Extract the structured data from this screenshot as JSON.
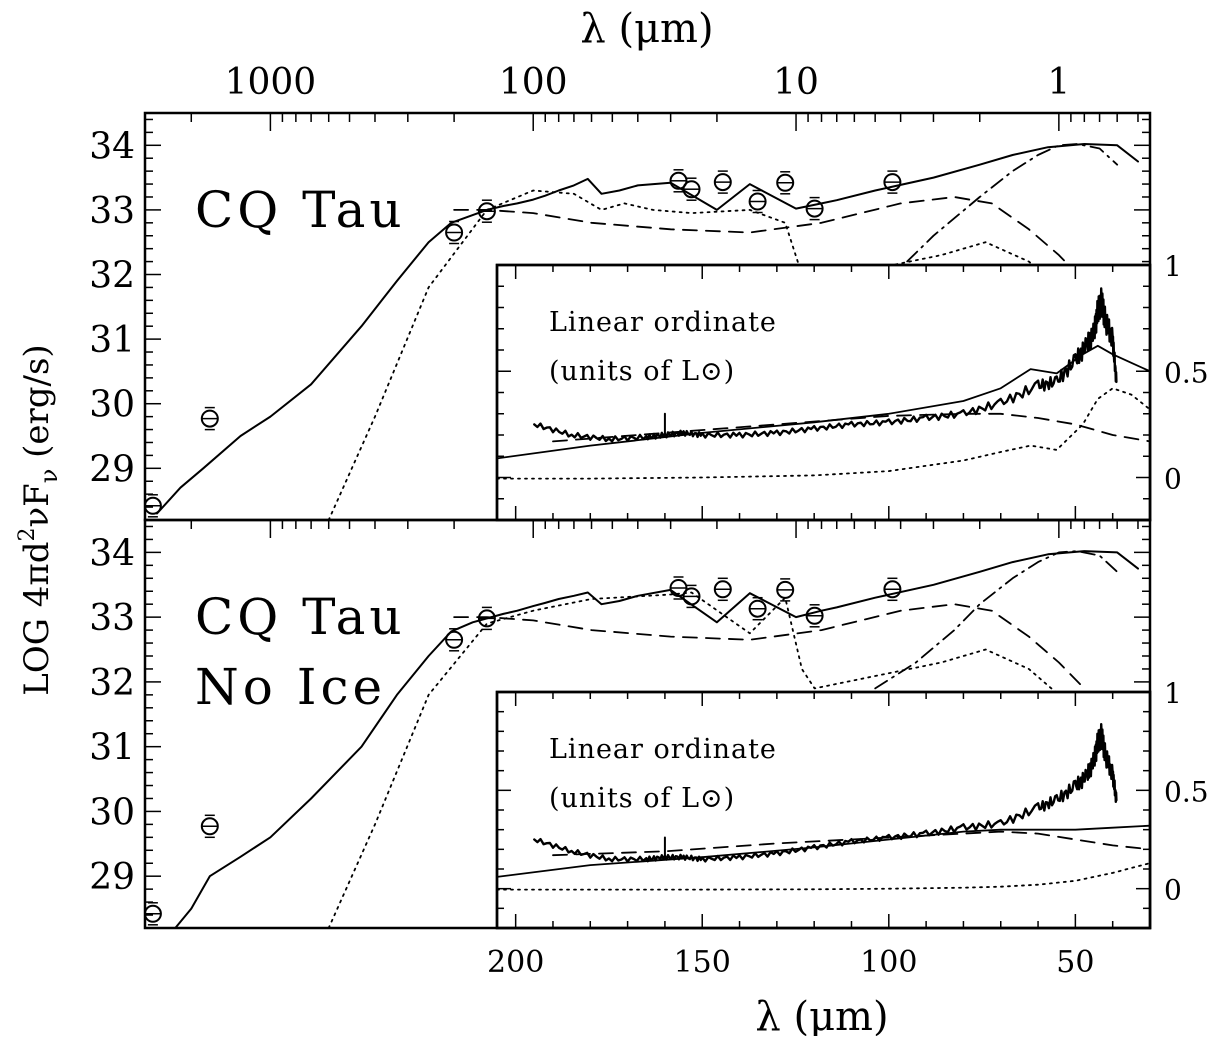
{
  "chart_data": [
    {
      "type": "line",
      "panel": "top",
      "title": "",
      "annotation": [
        "CQ Tau"
      ],
      "xlabel_top": "λ (μm)",
      "xlabel_top_ticks": [
        "1000",
        "100",
        "10",
        "1"
      ],
      "ylabel": "LOG 4πd²νFν (erg/s)",
      "yticks": [
        "34",
        "33",
        "32",
        "31",
        "30",
        "29"
      ],
      "ylim": [
        28.2,
        34.5
      ],
      "log_xlim_um": [
        3000,
        0.45
      ],
      "series": [
        {
          "style": "solid",
          "x": [
            2700,
            2200,
            1800,
            1300,
            1000,
            700,
            450,
            330,
            250,
            205,
            170,
            150,
            130,
            115,
            100,
            90,
            80,
            70,
            62,
            55,
            47,
            40,
            30,
            20,
            15,
            10,
            8,
            7,
            5,
            3,
            2,
            1.5,
            1.1,
            0.8,
            0.6,
            0.5
          ],
          "y": [
            28.3,
            28.7,
            29.0,
            29.5,
            29.8,
            30.3,
            31.2,
            31.9,
            32.5,
            32.8,
            32.92,
            33.0,
            33.06,
            33.1,
            33.16,
            33.22,
            33.3,
            33.38,
            33.48,
            33.25,
            33.3,
            33.38,
            33.42,
            33.0,
            33.4,
            33.02,
            33.1,
            33.15,
            33.3,
            33.5,
            33.7,
            33.85,
            33.97,
            34.02,
            34.0,
            33.75
          ]
        },
        {
          "style": "dashed",
          "x": [
            200,
            150,
            100,
            60,
            30,
            15,
            8,
            4,
            2.5,
            1.8,
            1.3,
            1.0,
            0.8
          ],
          "y": [
            33.0,
            33.0,
            32.95,
            32.8,
            32.7,
            32.65,
            32.8,
            33.1,
            33.2,
            33.1,
            32.7,
            32.3,
            31.9
          ]
        },
        {
          "style": "dotted",
          "x": [
            600,
            400,
            250,
            150,
            100,
            70,
            55,
            45,
            35,
            25,
            15,
            11,
            9.5,
            8.5,
            2.8,
            1.9,
            1.3,
            1.0
          ],
          "y": [
            28.2,
            29.8,
            31.8,
            33.0,
            33.3,
            33.25,
            33.0,
            33.1,
            33.0,
            32.95,
            33.0,
            32.8,
            32.0,
            31.9,
            32.3,
            32.5,
            32.2,
            31.8
          ]
        },
        {
          "style": "dashdot",
          "x": [
            4.5,
            3,
            2,
            1.5,
            1.2,
            1.0,
            0.85,
            0.7,
            0.6
          ],
          "y": [
            31.9,
            32.6,
            33.2,
            33.6,
            33.85,
            34.0,
            34.02,
            33.95,
            33.7
          ]
        }
      ],
      "points": {
        "x": [
          2800,
          1700,
          200,
          150,
          28,
          25,
          19,
          14,
          11,
          8.5,
          4.3
        ],
        "y": [
          28.42,
          29.77,
          32.65,
          32.98,
          33.45,
          33.32,
          33.43,
          33.13,
          33.42,
          33.02,
          33.43
        ]
      },
      "inset": {
        "annotation": [
          "Linear ordinate",
          "(units of L⊙)"
        ],
        "xticks": [
          "200",
          "150",
          "100",
          "50"
        ],
        "xlabel": "λ (μm)",
        "yticks": [
          "1",
          "0.5",
          "0"
        ],
        "ylim": [
          -0.2,
          1.0
        ],
        "xlim": [
          205,
          30
        ],
        "series": [
          {
            "style": "solid",
            "x": [
              205,
              180,
              150,
              120,
              100,
              80,
              70,
              62,
              55,
              48,
              44,
              40,
              35,
              30
            ],
            "y": [
              0.09,
              0.15,
              0.21,
              0.26,
              0.3,
              0.36,
              0.42,
              0.51,
              0.49,
              0.58,
              0.62,
              0.58,
              0.54,
              0.5
            ]
          },
          {
            "style": "dashed",
            "x": [
              190,
              160,
              130,
              100,
              80,
              70,
              60,
              50,
              40,
              30
            ],
            "y": [
              0.17,
              0.21,
              0.25,
              0.29,
              0.3,
              0.3,
              0.28,
              0.25,
              0.2,
              0.17
            ]
          },
          {
            "style": "dotted",
            "x": [
              205,
              180,
              150,
              120,
              100,
              80,
              70,
              62,
              55,
              48,
              44,
              40,
              35,
              30
            ],
            "y": [
              -0.005,
              -0.005,
              0.0,
              0.01,
              0.03,
              0.08,
              0.12,
              0.15,
              0.13,
              0.25,
              0.37,
              0.42,
              0.39,
              0.32
            ]
          },
          {
            "style": "noisy",
            "x": [
              195,
              185,
              175,
              165,
              160,
              155,
              150,
              140,
              130,
              120,
              110,
              100,
              90,
              80,
              70,
              60,
              55,
              50,
              47,
              45,
              44,
              43,
              42,
              40,
              39
            ],
            "y": [
              0.25,
              0.2,
              0.18,
              0.19,
              0.2,
              0.21,
              0.2,
              0.2,
              0.21,
              0.23,
              0.25,
              0.26,
              0.28,
              0.3,
              0.35,
              0.43,
              0.45,
              0.55,
              0.62,
              0.68,
              0.78,
              0.83,
              0.74,
              0.65,
              0.45
            ]
          }
        ]
      }
    },
    {
      "type": "line",
      "panel": "bottom",
      "title": "",
      "annotation": [
        "CQ Tau",
        "No Ice"
      ],
      "xlabel": "λ (μm)",
      "ylabel": "LOG 4πd²νFν (erg/s)",
      "yticks": [
        "34",
        "33",
        "32",
        "31",
        "30",
        "29"
      ],
      "ylim": [
        28.2,
        34.5
      ],
      "log_xlim_um": [
        3000,
        0.45
      ],
      "series": [
        {
          "style": "solid",
          "x": [
            2300,
            2000,
            1700,
            1300,
            1000,
            700,
            450,
            330,
            250,
            205,
            170,
            150,
            130,
            115,
            100,
            90,
            80,
            70,
            62,
            55,
            47,
            40,
            30,
            20,
            15,
            10,
            8,
            7,
            5,
            3,
            2,
            1.5,
            1.1,
            0.8,
            0.6,
            0.5
          ],
          "y": [
            28.2,
            28.5,
            29.0,
            29.3,
            29.6,
            30.2,
            31.0,
            31.8,
            32.4,
            32.78,
            32.92,
            32.98,
            33.05,
            33.1,
            33.17,
            33.22,
            33.28,
            33.33,
            33.38,
            33.2,
            33.25,
            33.33,
            33.42,
            32.92,
            33.37,
            33.0,
            33.1,
            33.15,
            33.3,
            33.5,
            33.7,
            33.85,
            33.97,
            34.02,
            34.0,
            33.75
          ]
        },
        {
          "style": "dashed",
          "x": [
            200,
            150,
            100,
            60,
            30,
            15,
            8,
            4,
            2.5,
            1.8,
            1.3,
            1.0,
            0.8
          ],
          "y": [
            33.0,
            33.0,
            32.95,
            32.8,
            32.7,
            32.65,
            32.8,
            33.1,
            33.2,
            33.1,
            32.7,
            32.3,
            31.9
          ]
        },
        {
          "style": "dotted",
          "x": [
            600,
            400,
            250,
            150,
            100,
            60,
            40,
            30,
            25,
            15,
            11,
            9.5,
            8.5,
            2.8,
            1.9,
            1.3,
            1.0
          ],
          "y": [
            28.2,
            29.8,
            31.8,
            32.9,
            33.1,
            33.28,
            33.32,
            33.35,
            33.38,
            32.75,
            33.3,
            32.2,
            31.9,
            32.3,
            32.5,
            32.2,
            31.8
          ]
        },
        {
          "style": "dashdot",
          "x": [
            5,
            3.5,
            2.5,
            2,
            1.5,
            1.2,
            1.0,
            0.85,
            0.7,
            0.6
          ],
          "y": [
            31.9,
            32.3,
            32.8,
            33.2,
            33.6,
            33.85,
            34.0,
            34.02,
            33.95,
            33.7
          ]
        }
      ],
      "points": {
        "x": [
          2800,
          1700,
          200,
          150,
          28,
          25,
          19,
          14,
          11,
          8.5,
          4.3
        ],
        "y": [
          28.42,
          29.77,
          32.65,
          32.98,
          33.45,
          33.32,
          33.43,
          33.13,
          33.42,
          33.02,
          33.43
        ]
      },
      "inset": {
        "annotation": [
          "Linear ordinate",
          "(units of L⊙)"
        ],
        "xticks": [
          "200",
          "150",
          "100",
          "50"
        ],
        "yticks": [
          "1",
          "0.5",
          "0"
        ],
        "ylim": [
          -0.2,
          1.0
        ],
        "xlim": [
          205,
          30
        ],
        "series": [
          {
            "style": "solid",
            "x": [
              205,
              180,
              150,
              120,
              100,
              80,
              70,
              60,
              50,
              40,
              30
            ],
            "y": [
              0.06,
              0.12,
              0.16,
              0.21,
              0.25,
              0.29,
              0.3,
              0.3,
              0.3,
              0.31,
              0.32
            ]
          },
          {
            "style": "dashed",
            "x": [
              190,
              160,
              130,
              100,
              80,
              70,
              60,
              50,
              40,
              30
            ],
            "y": [
              0.17,
              0.19,
              0.23,
              0.26,
              0.28,
              0.29,
              0.28,
              0.25,
              0.22,
              0.2
            ]
          },
          {
            "style": "dotted",
            "x": [
              205,
              180,
              150,
              120,
              100,
              80,
              70,
              60,
              50,
              40,
              30
            ],
            "y": [
              -0.005,
              -0.005,
              -0.005,
              -0.003,
              0.0,
              0.005,
              0.01,
              0.02,
              0.04,
              0.08,
              0.13
            ]
          },
          {
            "style": "noisy",
            "x": [
              195,
              185,
              175,
              165,
              160,
              155,
              150,
              140,
              130,
              120,
              110,
              100,
              90,
              80,
              70,
              60,
              55,
              50,
              47,
              45,
              44,
              43,
              42,
              40,
              39
            ],
            "y": [
              0.25,
              0.19,
              0.15,
              0.15,
              0.16,
              0.16,
              0.15,
              0.16,
              0.18,
              0.21,
              0.24,
              0.26,
              0.28,
              0.31,
              0.33,
              0.41,
              0.45,
              0.52,
              0.57,
              0.65,
              0.74,
              0.78,
              0.68,
              0.58,
              0.45
            ]
          }
        ]
      }
    }
  ]
}
